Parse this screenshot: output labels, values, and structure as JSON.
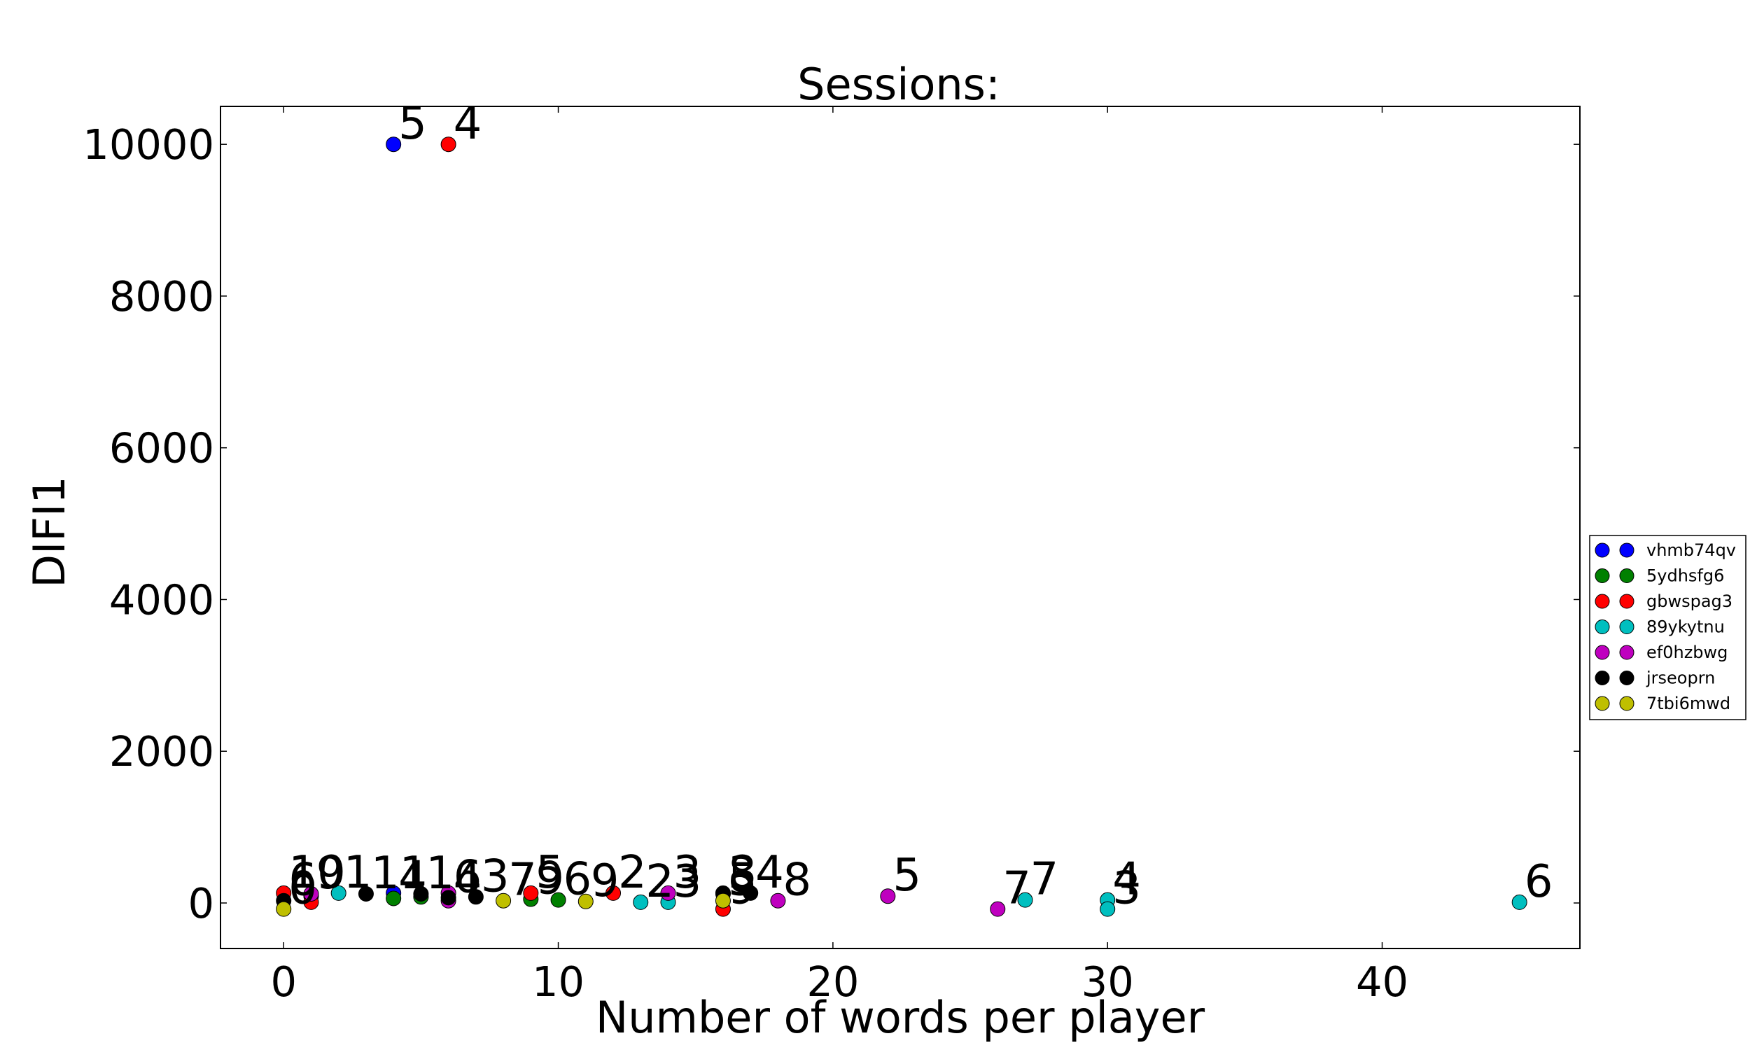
{
  "chart_data": {
    "type": "scatter",
    "title": "Sessions:",
    "xlabel": "Number of words per player",
    "ylabel": "DIFI1",
    "xlim": [
      -2.3,
      47.2
    ],
    "ylim": [
      -600,
      10500
    ],
    "xticks": [
      0,
      10,
      20,
      30,
      40
    ],
    "yticks": [
      0,
      2000,
      4000,
      6000,
      8000,
      10000
    ],
    "grid": false,
    "legend_position": "outside-right",
    "series": [
      {
        "name": "vhmb74qv",
        "color": "#0000ff",
        "points": [
          {
            "x": 4,
            "y": 10000,
            "label": "5"
          },
          {
            "x": 4,
            "y": 130,
            "label": ""
          },
          {
            "x": 1,
            "y": 90,
            "label": ""
          }
        ]
      },
      {
        "name": "5ydhsfg6",
        "color": "#008000",
        "points": [
          {
            "x": 4,
            "y": 60,
            "label": "4"
          },
          {
            "x": 5,
            "y": 80,
            "label": ""
          },
          {
            "x": 9,
            "y": 50,
            "label": "9"
          },
          {
            "x": 10,
            "y": 40,
            "label": "6"
          },
          {
            "x": 16,
            "y": 120,
            "label": "3"
          }
        ]
      },
      {
        "name": "gbwspag3",
        "color": "#ff0000",
        "points": [
          {
            "x": 6,
            "y": 10000,
            "label": "4"
          },
          {
            "x": 0,
            "y": 130,
            "label": "10"
          },
          {
            "x": 1,
            "y": 10,
            "label": ""
          },
          {
            "x": 9,
            "y": 130,
            "label": "5"
          },
          {
            "x": 12,
            "y": 130,
            "label": "2"
          },
          {
            "x": 16,
            "y": -80,
            "label": "9"
          }
        ]
      },
      {
        "name": "89ykytnu",
        "color": "#00bfbf",
        "points": [
          {
            "x": 2,
            "y": 130,
            "label": "1"
          },
          {
            "x": 13,
            "y": 10,
            "label": "2"
          },
          {
            "x": 14,
            "y": 10,
            "label": "3"
          },
          {
            "x": 27,
            "y": 40,
            "label": "7"
          },
          {
            "x": 30,
            "y": 40,
            "label": "4"
          },
          {
            "x": 30,
            "y": -80,
            "label": "3"
          },
          {
            "x": 45,
            "y": 10,
            "label": "6"
          }
        ]
      },
      {
        "name": "ef0hzbwg",
        "color": "#bf00bf",
        "points": [
          {
            "x": 1,
            "y": 120,
            "label": "9"
          },
          {
            "x": 6,
            "y": 30,
            "label": "4"
          },
          {
            "x": 6,
            "y": 130,
            "label": ""
          },
          {
            "x": 14,
            "y": 130,
            "label": "3"
          },
          {
            "x": 18,
            "y": 30,
            "label": "8"
          },
          {
            "x": 22,
            "y": 90,
            "label": "5"
          },
          {
            "x": 26,
            "y": -80,
            "label": "7"
          }
        ]
      },
      {
        "name": "jrseoprn",
        "color": "#000000",
        "points": [
          {
            "x": 0,
            "y": 30,
            "label": "6"
          },
          {
            "x": 3,
            "y": 120,
            "label": "11"
          },
          {
            "x": 5,
            "y": 120,
            "label": "1"
          },
          {
            "x": 6,
            "y": 70,
            "label": "6"
          },
          {
            "x": 7,
            "y": 80,
            "label": "3"
          },
          {
            "x": 16,
            "y": 130,
            "label": "8"
          },
          {
            "x": 17,
            "y": 130,
            "label": "4"
          }
        ]
      },
      {
        "name": "7tbi6mwd",
        "color": "#bfbf00",
        "points": [
          {
            "x": 0,
            "y": -80,
            "label": "0"
          },
          {
            "x": 8,
            "y": 30,
            "label": "7"
          },
          {
            "x": 11,
            "y": 20,
            "label": "9"
          },
          {
            "x": 16,
            "y": 30,
            "label": "5"
          }
        ]
      }
    ]
  }
}
